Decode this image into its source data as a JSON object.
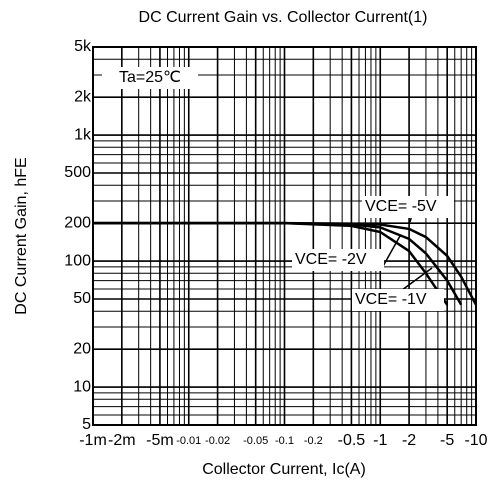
{
  "chart_data": {
    "type": "line",
    "title": "DC Current Gain vs. Collector Current(1)",
    "xlabel": "Collector Current, Ic(A)",
    "ylabel": "DC Current Gain, hFE",
    "annotations": [
      "Ta=25℃"
    ],
    "xscale": "log",
    "yscale": "log",
    "grid": true,
    "xlim": [
      -0.001,
      -10
    ],
    "ylim": [
      5,
      5000
    ],
    "xticks": [
      {
        "value": -0.001,
        "label": "-1m"
      },
      {
        "value": -0.002,
        "label": "-2m"
      },
      {
        "value": -0.005,
        "label": "-5m"
      },
      -0.01,
      -0.02,
      -0.05,
      -0.1,
      -0.2,
      -0.5,
      -1,
      -2,
      -5,
      -10
    ],
    "yticks": [
      5,
      10,
      20,
      50,
      100,
      200,
      500,
      {
        "value": 1000,
        "label": "1k"
      },
      {
        "value": 2000,
        "label": "2k"
      },
      {
        "value": 5000,
        "label": "5k"
      }
    ],
    "series": [
      {
        "name": "VCE= -5V",
        "color": "#000000",
        "x": [
          -0.001,
          -0.1,
          -0.5,
          -1,
          -2,
          -3,
          -5,
          -7,
          -10
        ],
        "values": [
          200,
          200,
          198,
          195,
          180,
          155,
          110,
          75,
          45
        ]
      },
      {
        "name": "VCE= -2V",
        "color": "#000000",
        "x": [
          -0.001,
          -0.1,
          -0.5,
          -1,
          -2,
          -3,
          -5,
          -7
        ],
        "values": [
          200,
          200,
          195,
          185,
          150,
          115,
          70,
          45
        ]
      },
      {
        "name": "VCE= -1V",
        "color": "#000000",
        "x": [
          -0.001,
          -0.1,
          -0.5,
          -1,
          -2,
          -3,
          -5
        ],
        "values": [
          200,
          200,
          190,
          170,
          120,
          80,
          45
        ]
      }
    ]
  }
}
